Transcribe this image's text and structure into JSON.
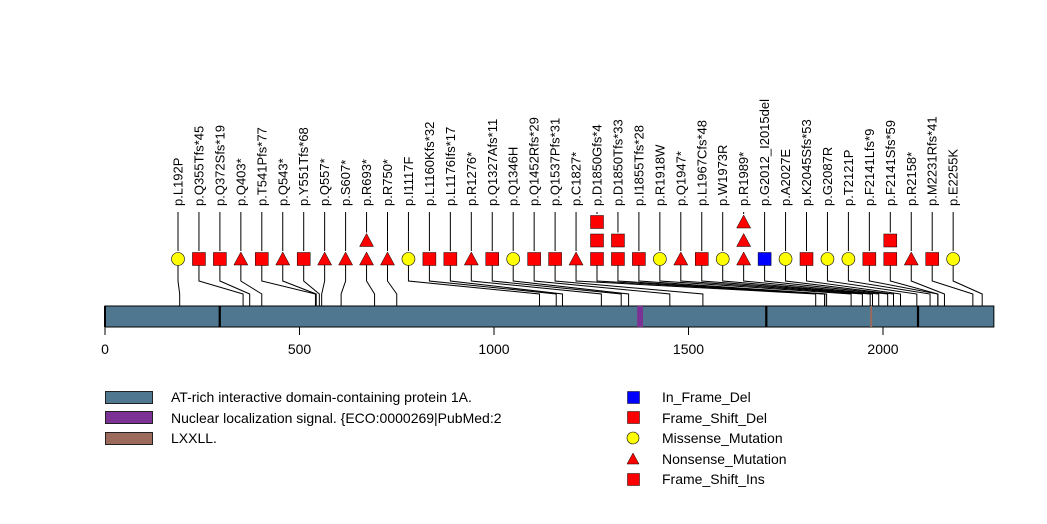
{
  "chart_data": {
    "type": "scatter",
    "subtype": "lollipop-mutation-plot",
    "protein_length": 2285,
    "x_axis": {
      "min": 0,
      "max": 2285,
      "ticks": [
        0,
        500,
        1000,
        1500,
        2000
      ],
      "tick_labels": [
        "0",
        "500",
        "1000",
        "1500",
        "2000"
      ]
    },
    "domains": [
      {
        "name": "AT-rich interactive domain-containing protein 1A.",
        "start": 1,
        "end": 2285,
        "color": "#4f7890"
      },
      {
        "name": "Nuclear localization signal. {ECO:0000269|PubMed:2",
        "start": 1369,
        "end": 1383,
        "color": "#7b3294"
      },
      {
        "name": "LXXLL.",
        "start": 1968,
        "end": 1972,
        "color": "#9b6a5a"
      }
    ],
    "domain_boundaries": [
      295,
      1700,
      2090
    ],
    "mutation_types": {
      "In_Frame_Del": {
        "shape": "square",
        "color": "#0000ff"
      },
      "Frame_Shift_Del": {
        "shape": "square",
        "color": "#ff0000"
      },
      "Missense_Mutation": {
        "shape": "circle",
        "color": "#ffff00"
      },
      "Nonsense_Mutation": {
        "shape": "triangle",
        "color": "#ff0000"
      },
      "Frame_Shift_Ins": {
        "shape": "square",
        "color": "#ff0000"
      }
    },
    "mutations": [
      {
        "label": "p.L192P",
        "pos": 192,
        "type": "Missense_Mutation",
        "count": 1
      },
      {
        "label": "p.Q355Tfs*45",
        "pos": 355,
        "type": "Frame_Shift_Del",
        "count": 1
      },
      {
        "label": "p.Q372Sfs*19",
        "pos": 372,
        "type": "Frame_Shift_Del",
        "count": 1
      },
      {
        "label": "p.Q403*",
        "pos": 403,
        "type": "Nonsense_Mutation",
        "count": 1
      },
      {
        "label": "p.T541Pfs*77",
        "pos": 541,
        "type": "Frame_Shift_Del",
        "count": 1
      },
      {
        "label": "p.Q543*",
        "pos": 543,
        "type": "Nonsense_Mutation",
        "count": 1
      },
      {
        "label": "p.Y551Tfs*68",
        "pos": 551,
        "type": "Frame_Shift_Del",
        "count": 1
      },
      {
        "label": "p.Q557*",
        "pos": 557,
        "type": "Nonsense_Mutation",
        "count": 1
      },
      {
        "label": "p.S607*",
        "pos": 607,
        "type": "Nonsense_Mutation",
        "count": 1
      },
      {
        "label": "p.R693*",
        "pos": 693,
        "type": "Nonsense_Mutation",
        "count": 2
      },
      {
        "label": "p.R750*",
        "pos": 750,
        "type": "Nonsense_Mutation",
        "count": 1
      },
      {
        "label": "p.I1117F",
        "pos": 1117,
        "type": "Missense_Mutation",
        "count": 1
      },
      {
        "label": "p.L1160Kfs*32",
        "pos": 1160,
        "type": "Frame_Shift_Del",
        "count": 1
      },
      {
        "label": "p.L1176Ifs*17",
        "pos": 1176,
        "type": "Frame_Shift_Del",
        "count": 1
      },
      {
        "label": "p.R1276*",
        "pos": 1276,
        "type": "Nonsense_Mutation",
        "count": 1
      },
      {
        "label": "p.Q1327Afs*11",
        "pos": 1327,
        "type": "Frame_Shift_Del",
        "count": 1
      },
      {
        "label": "p.Q1346H",
        "pos": 1346,
        "type": "Missense_Mutation",
        "count": 1
      },
      {
        "label": "p.Q1452Rfs*29",
        "pos": 1452,
        "type": "Frame_Shift_Del",
        "count": 1
      },
      {
        "label": "p.Q1537Pfs*31",
        "pos": 1537,
        "type": "Frame_Shift_Del",
        "count": 1
      },
      {
        "label": "p.C1827*",
        "pos": 1827,
        "type": "Nonsense_Mutation",
        "count": 1
      },
      {
        "label": "p.D1850Gfs*4",
        "pos": 1850,
        "type": "Frame_Shift_Del",
        "count": 3
      },
      {
        "label": "p.D1850Tfs*33",
        "pos": 1850,
        "type": "Frame_Shift_Del",
        "count": 2
      },
      {
        "label": "p.I1855Tfs*28",
        "pos": 1855,
        "type": "Frame_Shift_Del",
        "count": 1
      },
      {
        "label": "p.R1918W",
        "pos": 1918,
        "type": "Missense_Mutation",
        "count": 1
      },
      {
        "label": "p.Q1947*",
        "pos": 1947,
        "type": "Nonsense_Mutation",
        "count": 1
      },
      {
        "label": "p.L1967Cfs*48",
        "pos": 1967,
        "type": "Frame_Shift_Del",
        "count": 1
      },
      {
        "label": "p.W1973R",
        "pos": 1973,
        "type": "Missense_Mutation",
        "count": 1
      },
      {
        "label": "p.R1989*",
        "pos": 1989,
        "type": "Nonsense_Mutation",
        "count": 3
      },
      {
        "label": "p.G2012_I2015del",
        "pos": 2012,
        "type": "In_Frame_Del",
        "count": 1
      },
      {
        "label": "p.A2027E",
        "pos": 2027,
        "type": "Missense_Mutation",
        "count": 1
      },
      {
        "label": "p.K2045Sfs*53",
        "pos": 2045,
        "type": "Frame_Shift_Del",
        "count": 1
      },
      {
        "label": "p.G2087R",
        "pos": 2087,
        "type": "Missense_Mutation",
        "count": 1
      },
      {
        "label": "p.T2121P",
        "pos": 2121,
        "type": "Missense_Mutation",
        "count": 1
      },
      {
        "label": "p.F2141Lfs*9",
        "pos": 2141,
        "type": "Frame_Shift_Del",
        "count": 1
      },
      {
        "label": "p.F2141Sfs*59",
        "pos": 2141,
        "type": "Frame_Shift_Ins",
        "count": 2
      },
      {
        "label": "p.R2158*",
        "pos": 2158,
        "type": "Nonsense_Mutation",
        "count": 1
      },
      {
        "label": "p.M2231Rfs*41",
        "pos": 2231,
        "type": "Frame_Shift_Del",
        "count": 1
      },
      {
        "label": "p.E2255K",
        "pos": 2255,
        "type": "Missense_Mutation",
        "count": 1
      }
    ],
    "legend": {
      "domains": [
        "AT-rich interactive domain-containing protein 1A.",
        "Nuclear localization signal. {ECO:0000269|PubMed:2",
        "LXXLL."
      ],
      "mutation_types": [
        "In_Frame_Del",
        "Frame_Shift_Del",
        "Missense_Mutation",
        "Nonsense_Mutation",
        "Frame_Shift_Ins"
      ],
      "placement": "bottom"
    },
    "title": "",
    "xlabel": "",
    "ylabel": ""
  }
}
